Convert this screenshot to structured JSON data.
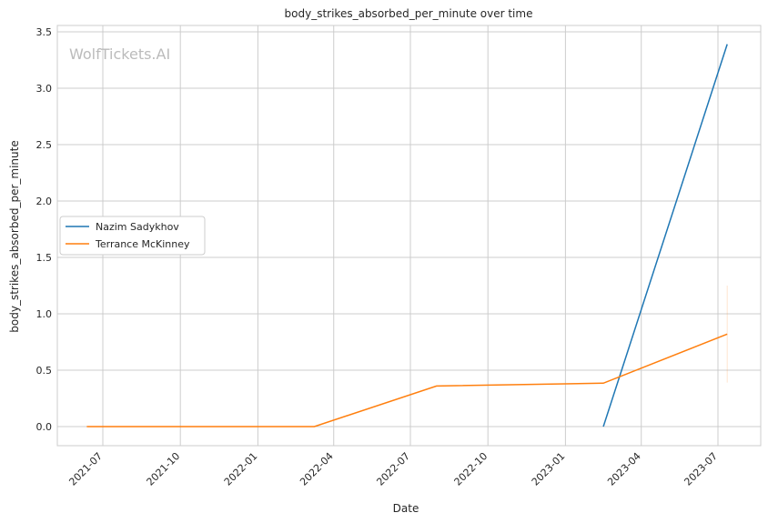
{
  "chart_data": {
    "type": "line",
    "title": "body_strikes_absorbed_per_minute over time",
    "xlabel": "Date",
    "ylabel": "body_strikes_absorbed_per_minute",
    "watermark": "WolfTickets.AI",
    "x_ticks": [
      "2021-07",
      "2021-10",
      "2022-01",
      "2022-04",
      "2022-07",
      "2022-10",
      "2023-01",
      "2023-04",
      "2023-07"
    ],
    "y_ticks": [
      "0.0",
      "0.5",
      "1.0",
      "1.5",
      "2.0",
      "2.5",
      "3.0",
      "3.5"
    ],
    "xlim": [
      "2021-05-03",
      "2023-07-28"
    ],
    "ylim": [
      -0.17,
      3.56
    ],
    "grid": true,
    "legend_position": "center-left",
    "series": [
      {
        "name": "Nazim Sadykhov",
        "color": "#1f77b4",
        "x": [
          "2023-02-15",
          "2023-07-12"
        ],
        "y": [
          0.0,
          3.39
        ]
      },
      {
        "name": "Terrance McKinney",
        "color": "#ff7f0e",
        "x": [
          "2021-06-12",
          "2022-03-09",
          "2022-08-01",
          "2023-02-15",
          "2023-07-12"
        ],
        "y": [
          0.0,
          0.0,
          0.36,
          0.385,
          0.82
        ],
        "ci_last": [
          0.39,
          1.25
        ]
      }
    ]
  }
}
